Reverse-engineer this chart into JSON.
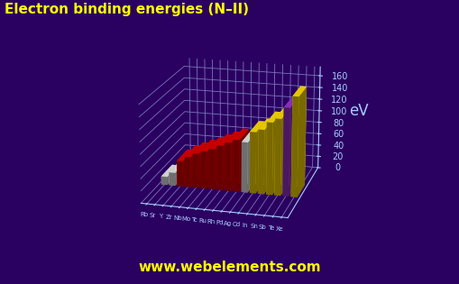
{
  "title": "Electron binding energies (N–II)",
  "ylabel": "eV",
  "background_color": "#2a0060",
  "title_color": "#ffff00",
  "ylabel_color": "#aaccff",
  "grid_color": "#7777bb",
  "axis_label_color": "#aaccff",
  "watermark": "www.webelements.com",
  "watermark_color": "#ffff00",
  "elements": [
    "Rb",
    "Sr",
    "Y",
    "Zr",
    "Nb",
    "Mo",
    "Tc",
    "Ru",
    "Rh",
    "Pd",
    "Ag",
    "Cd",
    "In",
    "Sn",
    "Sb",
    "Te",
    "Xe"
  ],
  "values": [
    14.0,
    22.0,
    43.0,
    51.0,
    58.0,
    63.0,
    68.0,
    75.0,
    81.0,
    87.0,
    84.0,
    102.0,
    107.0,
    120.0,
    127.0,
    146.0,
    165.0
  ],
  "colors": [
    "#e8e8e8",
    "#e8e8e8",
    "#dd0000",
    "#dd0000",
    "#dd0000",
    "#dd0000",
    "#dd0000",
    "#dd0000",
    "#dd0000",
    "#dd0000",
    "#e8e8e8",
    "#ffdd00",
    "#ffdd00",
    "#ffdd00",
    "#ffdd00",
    "#9933cc",
    "#ffdd00"
  ],
  "ylim": [
    0,
    175
  ],
  "yticks": [
    0,
    20,
    40,
    60,
    80,
    100,
    120,
    140,
    160
  ],
  "elev": 18,
  "azim": -75
}
